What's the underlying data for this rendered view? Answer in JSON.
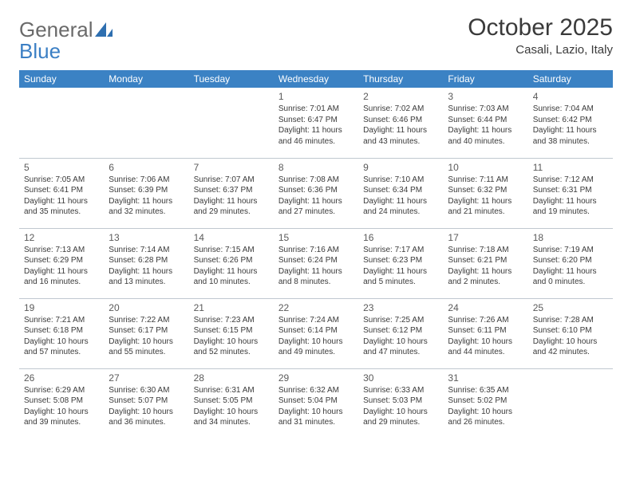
{
  "logo": {
    "text1": "General",
    "text2": "Blue"
  },
  "title": "October 2025",
  "location": "Casali, Lazio, Italy",
  "colors": {
    "header_bg": "#3b82c4",
    "header_text": "#ffffff",
    "border": "#c0c8d0",
    "text": "#3a3a3a",
    "logo_gray": "#6a6a6a",
    "logo_blue": "#3b7fc4"
  },
  "day_headers": [
    "Sunday",
    "Monday",
    "Tuesday",
    "Wednesday",
    "Thursday",
    "Friday",
    "Saturday"
  ],
  "weeks": [
    [
      null,
      null,
      null,
      {
        "n": "1",
        "sr": "7:01 AM",
        "ss": "6:47 PM",
        "dl": "11 hours and 46 minutes."
      },
      {
        "n": "2",
        "sr": "7:02 AM",
        "ss": "6:46 PM",
        "dl": "11 hours and 43 minutes."
      },
      {
        "n": "3",
        "sr": "7:03 AM",
        "ss": "6:44 PM",
        "dl": "11 hours and 40 minutes."
      },
      {
        "n": "4",
        "sr": "7:04 AM",
        "ss": "6:42 PM",
        "dl": "11 hours and 38 minutes."
      }
    ],
    [
      {
        "n": "5",
        "sr": "7:05 AM",
        "ss": "6:41 PM",
        "dl": "11 hours and 35 minutes."
      },
      {
        "n": "6",
        "sr": "7:06 AM",
        "ss": "6:39 PM",
        "dl": "11 hours and 32 minutes."
      },
      {
        "n": "7",
        "sr": "7:07 AM",
        "ss": "6:37 PM",
        "dl": "11 hours and 29 minutes."
      },
      {
        "n": "8",
        "sr": "7:08 AM",
        "ss": "6:36 PM",
        "dl": "11 hours and 27 minutes."
      },
      {
        "n": "9",
        "sr": "7:10 AM",
        "ss": "6:34 PM",
        "dl": "11 hours and 24 minutes."
      },
      {
        "n": "10",
        "sr": "7:11 AM",
        "ss": "6:32 PM",
        "dl": "11 hours and 21 minutes."
      },
      {
        "n": "11",
        "sr": "7:12 AM",
        "ss": "6:31 PM",
        "dl": "11 hours and 19 minutes."
      }
    ],
    [
      {
        "n": "12",
        "sr": "7:13 AM",
        "ss": "6:29 PM",
        "dl": "11 hours and 16 minutes."
      },
      {
        "n": "13",
        "sr": "7:14 AM",
        "ss": "6:28 PM",
        "dl": "11 hours and 13 minutes."
      },
      {
        "n": "14",
        "sr": "7:15 AM",
        "ss": "6:26 PM",
        "dl": "11 hours and 10 minutes."
      },
      {
        "n": "15",
        "sr": "7:16 AM",
        "ss": "6:24 PM",
        "dl": "11 hours and 8 minutes."
      },
      {
        "n": "16",
        "sr": "7:17 AM",
        "ss": "6:23 PM",
        "dl": "11 hours and 5 minutes."
      },
      {
        "n": "17",
        "sr": "7:18 AM",
        "ss": "6:21 PM",
        "dl": "11 hours and 2 minutes."
      },
      {
        "n": "18",
        "sr": "7:19 AM",
        "ss": "6:20 PM",
        "dl": "11 hours and 0 minutes."
      }
    ],
    [
      {
        "n": "19",
        "sr": "7:21 AM",
        "ss": "6:18 PM",
        "dl": "10 hours and 57 minutes."
      },
      {
        "n": "20",
        "sr": "7:22 AM",
        "ss": "6:17 PM",
        "dl": "10 hours and 55 minutes."
      },
      {
        "n": "21",
        "sr": "7:23 AM",
        "ss": "6:15 PM",
        "dl": "10 hours and 52 minutes."
      },
      {
        "n": "22",
        "sr": "7:24 AM",
        "ss": "6:14 PM",
        "dl": "10 hours and 49 minutes."
      },
      {
        "n": "23",
        "sr": "7:25 AM",
        "ss": "6:12 PM",
        "dl": "10 hours and 47 minutes."
      },
      {
        "n": "24",
        "sr": "7:26 AM",
        "ss": "6:11 PM",
        "dl": "10 hours and 44 minutes."
      },
      {
        "n": "25",
        "sr": "7:28 AM",
        "ss": "6:10 PM",
        "dl": "10 hours and 42 minutes."
      }
    ],
    [
      {
        "n": "26",
        "sr": "6:29 AM",
        "ss": "5:08 PM",
        "dl": "10 hours and 39 minutes."
      },
      {
        "n": "27",
        "sr": "6:30 AM",
        "ss": "5:07 PM",
        "dl": "10 hours and 36 minutes."
      },
      {
        "n": "28",
        "sr": "6:31 AM",
        "ss": "5:05 PM",
        "dl": "10 hours and 34 minutes."
      },
      {
        "n": "29",
        "sr": "6:32 AM",
        "ss": "5:04 PM",
        "dl": "10 hours and 31 minutes."
      },
      {
        "n": "30",
        "sr": "6:33 AM",
        "ss": "5:03 PM",
        "dl": "10 hours and 29 minutes."
      },
      {
        "n": "31",
        "sr": "6:35 AM",
        "ss": "5:02 PM",
        "dl": "10 hours and 26 minutes."
      },
      null
    ]
  ],
  "labels": {
    "sunrise": "Sunrise:",
    "sunset": "Sunset:",
    "daylight": "Daylight:"
  }
}
